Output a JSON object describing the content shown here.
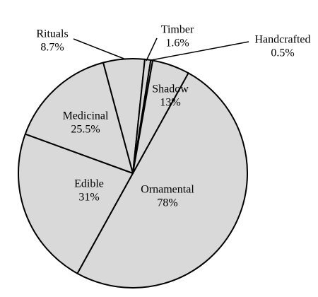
{
  "chart_data": {
    "type": "pie",
    "slices": [
      {
        "label": "Ornamental",
        "value": 78,
        "value_label": "78%"
      },
      {
        "label": "Edible",
        "value": 31,
        "value_label": "31%"
      },
      {
        "label": "Medicinal",
        "value": 25.5,
        "value_label": "25.5%"
      },
      {
        "label": "Rituals",
        "value": 8.7,
        "value_label": "8.7%"
      },
      {
        "label": "Timber",
        "value": 1.6,
        "value_label": "1.6%"
      },
      {
        "label": "Handcrafted",
        "value": 0.5,
        "value_label": "0.5%"
      },
      {
        "label": "Shadow",
        "value": 13,
        "value_label": "13%"
      }
    ],
    "colors": {
      "fill": "#d9d9d9",
      "stroke": "#000000"
    },
    "legend": "none"
  }
}
